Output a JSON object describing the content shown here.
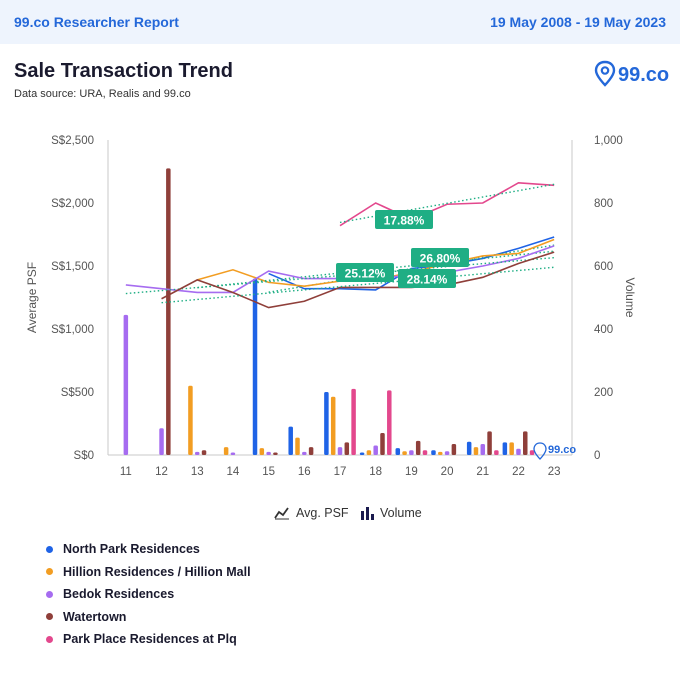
{
  "header": {
    "report_title": "99.co Researcher Report",
    "date_range": "19 May 2008 - 19 May 2023"
  },
  "title": "Sale Transaction Trend",
  "subtitle": "Data source: URA, Realis and 99.co",
  "logo_text": "99.co",
  "watermark_text": "99.co",
  "legend_types": {
    "avg_psf": "Avg. PSF",
    "volume": "Volume"
  },
  "colors": {
    "North Park Residences": "#1f63e6",
    "Hillion Residences / Hillion Mall": "#f29d22",
    "Bedok Residences": "#a66cf0",
    "Watertown": "#8f3f3a",
    "Park Place Residences at Plq": "#e3488d",
    "badge": "#1fae84"
  },
  "chart_data": {
    "type": "bar",
    "x": [
      "11",
      "12",
      "13",
      "14",
      "15",
      "16",
      "17",
      "18",
      "19",
      "20",
      "21",
      "22",
      "23"
    ],
    "y_left": {
      "label": "Average PSF",
      "ticks": [
        "S$0",
        "S$500",
        "S$1,000",
        "S$1,500",
        "S$2,000",
        "S$2,500"
      ],
      "min": 0,
      "max": 2500
    },
    "y_right": {
      "label": "Volume",
      "ticks": [
        "0",
        "200",
        "400",
        "600",
        "800",
        "1,000"
      ],
      "min": 0,
      "max": 1000
    },
    "volume_series": [
      {
        "name": "North Park Residences",
        "values": [
          0,
          0,
          0,
          0,
          560,
          90,
          200,
          8,
          22,
          15,
          42,
          40,
          0
        ]
      },
      {
        "name": "Hillion Residences / Hillion Mall",
        "values": [
          0,
          0,
          220,
          25,
          22,
          55,
          185,
          15,
          12,
          10,
          25,
          40,
          0
        ]
      },
      {
        "name": "Bedok Residences",
        "values": [
          445,
          85,
          10,
          8,
          10,
          10,
          25,
          30,
          15,
          12,
          35,
          20,
          0
        ]
      },
      {
        "name": "Watertown",
        "values": [
          0,
          910,
          15,
          0,
          8,
          25,
          40,
          70,
          45,
          35,
          75,
          75,
          0
        ]
      },
      {
        "name": "Park Place Residences at Plq",
        "values": [
          0,
          0,
          0,
          0,
          0,
          0,
          210,
          205,
          15,
          0,
          15,
          15,
          0
        ]
      }
    ],
    "psf_series": [
      {
        "name": "North Park Residences",
        "x": [
          "15",
          "16",
          "17",
          "18",
          "19",
          "20",
          "21",
          "22",
          "23"
        ],
        "values": [
          1440,
          1320,
          1320,
          1310,
          1480,
          1510,
          1560,
          1640,
          1730
        ]
      },
      {
        "name": "Hillion Residences / Hillion Mall",
        "x": [
          "13",
          "14",
          "15",
          "16",
          "17",
          "18",
          "19",
          "20",
          "21",
          "22",
          "23"
        ],
        "values": [
          1390,
          1470,
          1370,
          1340,
          1380,
          1390,
          1450,
          1520,
          1580,
          1600,
          1710
        ]
      },
      {
        "name": "Bedok Residences",
        "x": [
          "11",
          "12",
          "13",
          "14",
          "15",
          "16",
          "17",
          "18",
          "19",
          "20",
          "21",
          "22",
          "23"
        ],
        "values": [
          1350,
          1320,
          1290,
          1290,
          1460,
          1400,
          1400,
          1400,
          1430,
          1450,
          1500,
          1560,
          1660
        ]
      },
      {
        "name": "Watertown",
        "x": [
          "12",
          "13",
          "14",
          "15",
          "16",
          "17",
          "18",
          "19",
          "20",
          "21",
          "22",
          "23"
        ],
        "values": [
          1240,
          1390,
          1290,
          1170,
          1220,
          1330,
          1330,
          1330,
          1350,
          1410,
          1520,
          1610
        ]
      },
      {
        "name": "Park Place Residences at Plq",
        "x": [
          "17",
          "18",
          "19",
          "20",
          "21",
          "22",
          "23"
        ],
        "values": [
          1820,
          2000,
          1870,
          1990,
          2000,
          2160,
          2140
        ]
      }
    ],
    "growth_labels": [
      {
        "series": "Park Place Residences at Plq",
        "text": "17.88%"
      },
      {
        "series": "Hillion Residences / Hillion Mall",
        "text": "26.80%"
      },
      {
        "series": "Watertown",
        "text": "25.12%"
      },
      {
        "series": "North Park Residences",
        "text": "28.14%"
      }
    ]
  }
}
